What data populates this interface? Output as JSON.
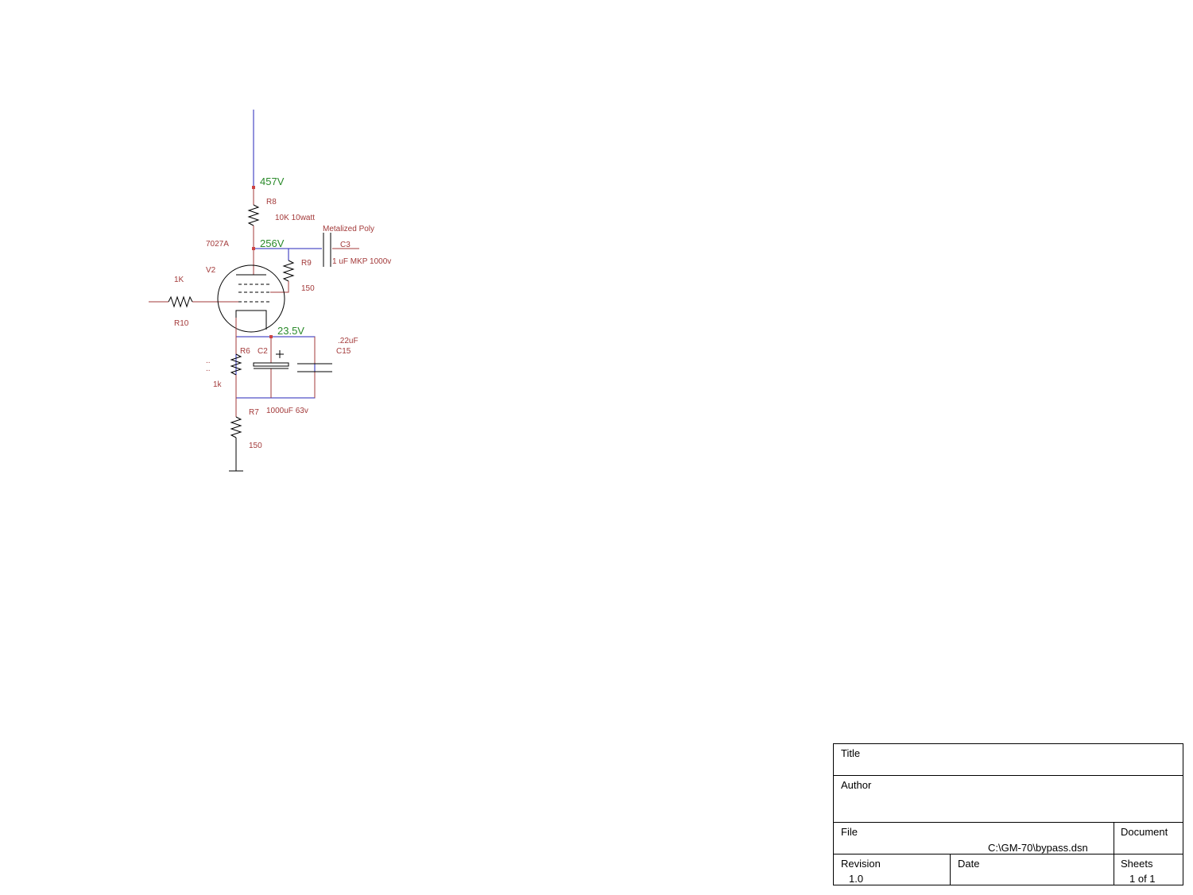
{
  "voltages": {
    "supply": "457V",
    "plate": "256V",
    "cathode": "23.5V"
  },
  "tube": {
    "ref": "V2",
    "type": "7027A"
  },
  "resistors": [
    {
      "ref": "R8",
      "value": "10K 10watt"
    },
    {
      "ref": "R9",
      "value": "150"
    },
    {
      "ref": "R10",
      "value": "1K"
    },
    {
      "ref": "R6",
      "value": "1k"
    },
    {
      "ref": "R7",
      "value": "150"
    }
  ],
  "capacitors": [
    {
      "ref": "C3",
      "value": "1 uF MKP 1000v",
      "type": "Metalized Poly"
    },
    {
      "ref": "C2",
      "value": "1000uF 63v"
    },
    {
      "ref": "C15",
      "value": ".22uF"
    }
  ],
  "markers": [
    "..",
    ".."
  ],
  "title_block": {
    "title": "Title",
    "author": "Author",
    "file": "File",
    "file_path": "C:\\GM-70\\bypass.dsn",
    "document": "Document",
    "revision": "Revision",
    "revision_value": "1.0",
    "date": "Date",
    "sheets": "Sheets",
    "sheets_value": "1 of 1"
  }
}
